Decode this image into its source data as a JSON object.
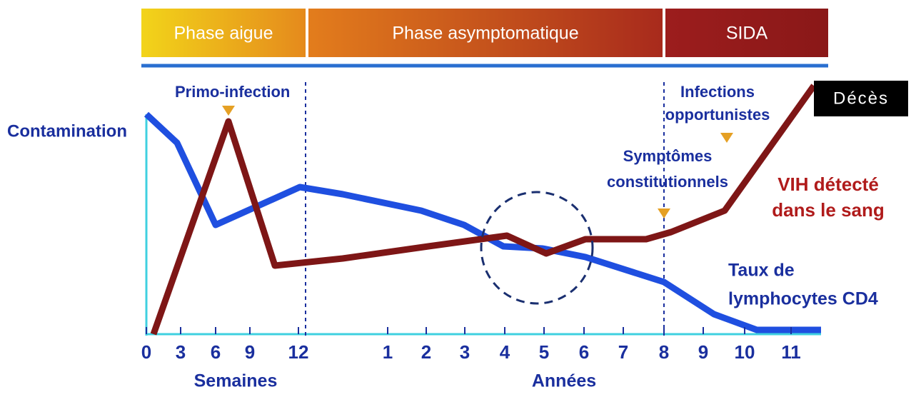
{
  "phases": [
    "Phase aigue",
    "Phase asymptomatique",
    "SIDA"
  ],
  "annotations": {
    "contamination": "Contamination",
    "primo_infection": "Primo-infection",
    "infections": [
      "Infections",
      "opportunistes"
    ],
    "symptomes": [
      "Symptômes",
      "constitutionnels"
    ],
    "vih": [
      "VIH détecté",
      "dans le sang"
    ],
    "cd4": [
      "Taux de",
      "lymphocytes CD4"
    ],
    "deces": "Décès"
  },
  "x_axis": {
    "weeks": {
      "label": "Semaines",
      "ticks": [
        "0",
        "3",
        "6",
        "9",
        "12"
      ]
    },
    "years": {
      "label": "Années",
      "ticks": [
        "1",
        "2",
        "3",
        "4",
        "5",
        "6",
        "7",
        "8",
        "9",
        "10",
        "11"
      ]
    }
  }
}
